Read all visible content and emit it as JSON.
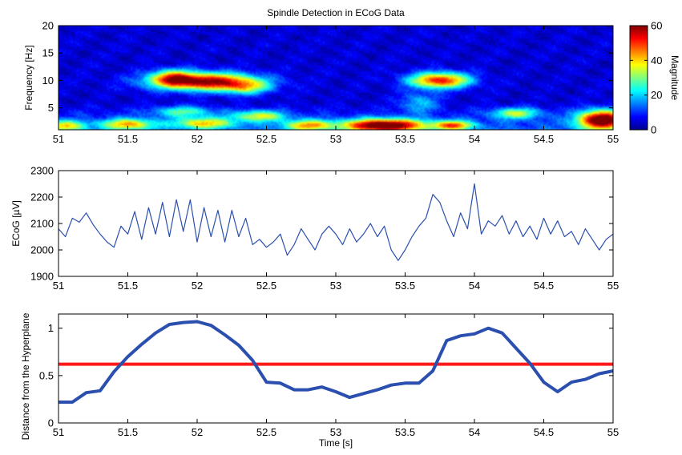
{
  "figure": {
    "title": "Spindle Detection in ECoG Data"
  },
  "colors": {
    "trace": "#2b4fae",
    "threshold": "#ff1a1a",
    "axis": "#000000"
  },
  "chart_data": [
    {
      "type": "heatmap",
      "title": "Spindle Detection in ECoG Data",
      "xlabel": "",
      "ylabel": "Frequency [Hz]",
      "xlim": [
        51,
        55
      ],
      "ylim": [
        1,
        20
      ],
      "xticks": [
        "51",
        "51.5",
        "52",
        "52.5",
        "53",
        "53.5",
        "54",
        "54.5",
        "55"
      ],
      "yticks": [
        "5",
        "10",
        "15",
        "20"
      ],
      "colorbar": {
        "label": "Magnitude",
        "range": [
          0,
          60
        ],
        "ticks": [
          "0",
          "20",
          "40",
          "60"
        ],
        "colormap": "jet"
      },
      "blobs": [
        {
          "t": 52.05,
          "f": 9.8,
          "st": 0.26,
          "sf": 1.1,
          "mag": 55
        },
        {
          "t": 51.82,
          "f": 10.6,
          "st": 0.1,
          "sf": 1.0,
          "mag": 25
        },
        {
          "t": 52.35,
          "f": 8.7,
          "st": 0.12,
          "sf": 0.9,
          "mag": 22
        },
        {
          "t": 53.75,
          "f": 10.0,
          "st": 0.15,
          "sf": 1.0,
          "mag": 48
        },
        {
          "t": 53.35,
          "f": 1.8,
          "st": 0.2,
          "sf": 0.8,
          "mag": 60
        },
        {
          "t": 54.92,
          "f": 2.8,
          "st": 0.12,
          "sf": 1.2,
          "mag": 60
        },
        {
          "t": 51.5,
          "f": 2.0,
          "st": 0.13,
          "sf": 0.7,
          "mag": 32
        },
        {
          "t": 51.05,
          "f": 1.7,
          "st": 0.1,
          "sf": 0.7,
          "mag": 28
        },
        {
          "t": 52.05,
          "f": 2.2,
          "st": 0.15,
          "sf": 0.7,
          "mag": 30
        },
        {
          "t": 52.45,
          "f": 3.5,
          "st": 0.13,
          "sf": 0.7,
          "mag": 28
        },
        {
          "t": 52.8,
          "f": 1.8,
          "st": 0.12,
          "sf": 0.7,
          "mag": 32
        },
        {
          "t": 53.85,
          "f": 1.8,
          "st": 0.1,
          "sf": 0.6,
          "mag": 36
        },
        {
          "t": 54.3,
          "f": 4.0,
          "st": 0.12,
          "sf": 0.7,
          "mag": 26
        },
        {
          "t": 51.9,
          "f": 4.3,
          "st": 0.15,
          "sf": 0.7,
          "mag": 20
        },
        {
          "t": 53.6,
          "f": 6.0,
          "st": 0.1,
          "sf": 1.3,
          "mag": 14
        }
      ]
    },
    {
      "type": "line",
      "xlabel": "",
      "ylabel": "ECoG [µV]",
      "xlim": [
        51,
        55
      ],
      "ylim": [
        1900,
        2300
      ],
      "xticks": [
        "51",
        "51.5",
        "52",
        "52.5",
        "53",
        "53.5",
        "54",
        "54.5",
        "55"
      ],
      "yticks": [
        "1900",
        "2000",
        "2100",
        "2200",
        "2300"
      ],
      "series": [
        {
          "x": [
            51.0,
            51.05,
            51.1,
            51.15,
            51.2,
            51.25,
            51.3,
            51.35,
            51.4,
            51.45,
            51.5,
            51.55,
            51.6,
            51.65,
            51.7,
            51.75,
            51.8,
            51.85,
            51.9,
            51.95,
            52.0,
            52.05,
            52.1,
            52.15,
            52.2,
            52.25,
            52.3,
            52.35,
            52.4,
            52.45,
            52.5,
            52.55,
            52.6,
            52.65,
            52.7,
            52.75,
            52.8,
            52.85,
            52.9,
            52.95,
            53.0,
            53.05,
            53.1,
            53.15,
            53.2,
            53.25,
            53.3,
            53.35,
            53.4,
            53.45,
            53.5,
            53.55,
            53.6,
            53.65,
            53.7,
            53.75,
            53.8,
            53.85,
            53.9,
            53.95,
            54.0,
            54.05,
            54.1,
            54.15,
            54.2,
            54.25,
            54.3,
            54.35,
            54.4,
            54.45,
            54.5,
            54.55,
            54.6,
            54.65,
            54.7,
            54.75,
            54.8,
            54.85,
            54.9,
            54.95,
            55.0
          ],
          "y": [
            2080,
            2050,
            2120,
            2105,
            2140,
            2095,
            2060,
            2030,
            2010,
            2090,
            2060,
            2145,
            2040,
            2160,
            2060,
            2180,
            2050,
            2190,
            2070,
            2190,
            2030,
            2160,
            2050,
            2150,
            2030,
            2150,
            2050,
            2120,
            2020,
            2040,
            2010,
            2030,
            2060,
            1980,
            2020,
            2080,
            2040,
            2000,
            2060,
            2090,
            2060,
            2020,
            2080,
            2030,
            2060,
            2100,
            2050,
            2090,
            2000,
            1960,
            2000,
            2050,
            2090,
            2120,
            2210,
            2180,
            2110,
            2050,
            2140,
            2080,
            2250,
            2060,
            2110,
            2090,
            2130,
            2060,
            2110,
            2050,
            2090,
            2040,
            2120,
            2060,
            2110,
            2050,
            2070,
            2020,
            2080,
            2040,
            2000,
            2040,
            2060
          ]
        }
      ]
    },
    {
      "type": "line",
      "xlabel": "Time [s]",
      "ylabel": "Distance from the Hyperplane",
      "xlim": [
        51,
        55
      ],
      "ylim": [
        0,
        1.15
      ],
      "xticks": [
        "51",
        "51.5",
        "52",
        "52.5",
        "53",
        "53.5",
        "54",
        "54.5",
        "55"
      ],
      "yticks": [
        "0",
        "0.5",
        "1"
      ],
      "threshold": 0.62,
      "series": [
        {
          "x": [
            51.0,
            51.1,
            51.2,
            51.3,
            51.4,
            51.5,
            51.6,
            51.7,
            51.8,
            51.9,
            52.0,
            52.1,
            52.2,
            52.3,
            52.4,
            52.5,
            52.6,
            52.7,
            52.8,
            52.9,
            53.0,
            53.1,
            53.2,
            53.3,
            53.4,
            53.5,
            53.6,
            53.7,
            53.8,
            53.9,
            54.0,
            54.1,
            54.2,
            54.3,
            54.4,
            54.5,
            54.6,
            54.7,
            54.8,
            54.9,
            55.0
          ],
          "y": [
            0.22,
            0.22,
            0.32,
            0.34,
            0.54,
            0.7,
            0.83,
            0.95,
            1.04,
            1.06,
            1.07,
            1.03,
            0.93,
            0.82,
            0.66,
            0.43,
            0.42,
            0.35,
            0.35,
            0.38,
            0.33,
            0.27,
            0.31,
            0.35,
            0.4,
            0.42,
            0.42,
            0.55,
            0.87,
            0.92,
            0.94,
            1.0,
            0.95,
            0.79,
            0.63,
            0.43,
            0.33,
            0.43,
            0.46,
            0.52,
            0.55
          ]
        }
      ]
    }
  ]
}
